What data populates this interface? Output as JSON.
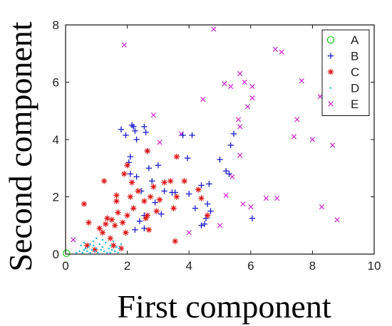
{
  "chart_data": {
    "type": "scatter",
    "xlabel": "First component",
    "ylabel": "Second component",
    "xlim": [
      0,
      10
    ],
    "ylim": [
      0,
      8
    ],
    "xticks": [
      "0",
      "2",
      "4",
      "6",
      "8",
      "10"
    ],
    "yticks": [
      "0",
      "2",
      "4",
      "6",
      "8"
    ],
    "grid": false,
    "legend_position": "top-right",
    "series": [
      {
        "name": "A",
        "marker": "circle",
        "color": "#22cc22",
        "points": [
          [
            0.03,
            0.03
          ]
        ]
      },
      {
        "name": "B",
        "marker": "plus",
        "color": "#1a1acc",
        "points": [
          [
            1.8,
            4.35
          ],
          [
            1.95,
            4.15
          ],
          [
            2.05,
            3.2
          ],
          [
            2.1,
            3.4
          ],
          [
            2.15,
            4.5
          ],
          [
            2.2,
            4.45
          ],
          [
            2.25,
            4.3
          ],
          [
            2.3,
            4.0
          ],
          [
            2.55,
            4.45
          ],
          [
            2.6,
            4.25
          ],
          [
            2.65,
            3.6
          ],
          [
            2.7,
            3.0
          ],
          [
            2.1,
            2.8
          ],
          [
            2.3,
            2.7
          ],
          [
            2.45,
            2.2
          ],
          [
            2.8,
            2.55
          ],
          [
            3.0,
            3.1
          ],
          [
            3.2,
            2.2
          ],
          [
            3.45,
            2.15
          ],
          [
            3.55,
            2.15
          ],
          [
            2.9,
            1.8
          ],
          [
            3.1,
            1.4
          ],
          [
            3.8,
            4.15
          ],
          [
            3.95,
            3.35
          ],
          [
            4.1,
            4.15
          ],
          [
            4.0,
            2.1
          ],
          [
            4.2,
            1.6
          ],
          [
            4.4,
            1.0
          ],
          [
            4.5,
            1.05
          ],
          [
            4.55,
            1.25
          ],
          [
            4.6,
            1.75
          ],
          [
            4.7,
            1.5
          ],
          [
            4.65,
            2.45
          ],
          [
            4.4,
            2.4
          ],
          [
            5.0,
            3.3
          ],
          [
            5.2,
            2.9
          ],
          [
            5.3,
            2.8
          ],
          [
            5.35,
            3.8
          ],
          [
            5.45,
            4.2
          ],
          [
            6.05,
            1.25
          ],
          [
            2.25,
            0.85
          ],
          [
            2.55,
            0.9
          ],
          [
            2.4,
            1.15
          ],
          [
            2.55,
            1.35
          ]
        ]
      },
      {
        "name": "C",
        "marker": "star",
        "color": "#dd1111",
        "points": [
          [
            0.6,
            1.75
          ],
          [
            0.75,
            1.1
          ],
          [
            0.7,
            0.3
          ],
          [
            0.95,
            0.15
          ],
          [
            1.1,
            0.9
          ],
          [
            1.2,
            0.75
          ],
          [
            1.3,
            1.05
          ],
          [
            1.35,
            1.25
          ],
          [
            1.45,
            0.55
          ],
          [
            1.55,
            0.3
          ],
          [
            1.5,
            1.2
          ],
          [
            1.6,
            1.0
          ],
          [
            1.65,
            1.85
          ],
          [
            1.7,
            1.45
          ],
          [
            1.85,
            1.1
          ],
          [
            1.95,
            0.75
          ],
          [
            2.0,
            1.35
          ],
          [
            2.1,
            2.0
          ],
          [
            2.2,
            1.6
          ],
          [
            1.25,
            2.55
          ],
          [
            1.65,
            2.05
          ],
          [
            1.9,
            2.8
          ],
          [
            2.0,
            3.1
          ],
          [
            2.15,
            2.5
          ],
          [
            2.35,
            2.2
          ],
          [
            2.55,
            1.85
          ],
          [
            2.6,
            1.25
          ],
          [
            2.65,
            1.35
          ],
          [
            2.75,
            2.0
          ],
          [
            2.85,
            2.35
          ],
          [
            2.95,
            1.5
          ],
          [
            3.05,
            1.9
          ],
          [
            3.2,
            2.5
          ],
          [
            3.4,
            2.55
          ],
          [
            3.5,
            1.6
          ],
          [
            3.6,
            2.0
          ],
          [
            3.85,
            2.55
          ],
          [
            4.3,
            2.25
          ],
          [
            4.4,
            1.95
          ],
          [
            4.6,
            1.35
          ],
          [
            3.55,
            0.45
          ],
          [
            2.65,
            3.6
          ],
          [
            3.6,
            3.4
          ],
          [
            1.8,
            0.2
          ],
          [
            2.7,
            0.85
          ]
        ]
      },
      {
        "name": "D",
        "marker": "dot",
        "color": "#33bbdd",
        "points": [
          [
            0.35,
            0.05
          ],
          [
            0.45,
            0.1
          ],
          [
            0.55,
            0.05
          ],
          [
            0.6,
            0.15
          ],
          [
            0.65,
            0.2
          ],
          [
            0.7,
            0.1
          ],
          [
            0.75,
            0.25
          ],
          [
            0.8,
            0.05
          ],
          [
            0.85,
            0.15
          ],
          [
            0.9,
            0.3
          ],
          [
            0.95,
            0.1
          ],
          [
            1.0,
            0.2
          ],
          [
            1.05,
            0.05
          ],
          [
            1.1,
            0.35
          ],
          [
            1.15,
            0.15
          ],
          [
            1.2,
            0.25
          ],
          [
            1.25,
            0.1
          ],
          [
            1.3,
            0.4
          ],
          [
            1.35,
            0.05
          ],
          [
            1.4,
            0.2
          ],
          [
            1.45,
            0.3
          ],
          [
            1.5,
            0.15
          ],
          [
            1.55,
            0.45
          ],
          [
            1.6,
            0.1
          ],
          [
            1.65,
            0.25
          ],
          [
            1.7,
            0.05
          ],
          [
            0.9,
            0.45
          ],
          [
            1.0,
            0.55
          ],
          [
            1.2,
            0.5
          ],
          [
            0.5,
            0.3
          ],
          [
            0.6,
            0.4
          ],
          [
            0.8,
            0.35
          ],
          [
            1.45,
            0.05
          ],
          [
            1.75,
            0.2
          ],
          [
            1.8,
            0.35
          ]
        ]
      },
      {
        "name": "E",
        "marker": "x",
        "color": "#cc22cc",
        "points": [
          [
            0.25,
            0.5
          ],
          [
            1.9,
            7.3
          ],
          [
            2.85,
            4.85
          ],
          [
            3.05,
            3.9
          ],
          [
            3.75,
            4.2
          ],
          [
            4.0,
            0.75
          ],
          [
            4.8,
            7.85
          ],
          [
            4.45,
            5.4
          ],
          [
            5.15,
            5.95
          ],
          [
            5.35,
            5.85
          ],
          [
            5.0,
            1.0
          ],
          [
            5.2,
            2.05
          ],
          [
            5.4,
            2.7
          ],
          [
            5.6,
            4.7
          ],
          [
            5.65,
            4.45
          ],
          [
            5.65,
            6.3
          ],
          [
            5.8,
            6.0
          ],
          [
            5.9,
            5.15
          ],
          [
            6.05,
            5.85
          ],
          [
            6.05,
            5.45
          ],
          [
            5.65,
            3.45
          ],
          [
            5.75,
            1.75
          ],
          [
            6.0,
            1.65
          ],
          [
            6.5,
            1.95
          ],
          [
            6.85,
            1.95
          ],
          [
            6.8,
            7.15
          ],
          [
            7.0,
            7.05
          ],
          [
            7.65,
            6.05
          ],
          [
            7.4,
            4.1
          ],
          [
            7.5,
            4.7
          ],
          [
            8.0,
            4.0
          ],
          [
            8.25,
            5.5
          ],
          [
            8.3,
            1.65
          ],
          [
            8.65,
            3.8
          ],
          [
            8.8,
            1.2
          ]
        ]
      }
    ]
  }
}
